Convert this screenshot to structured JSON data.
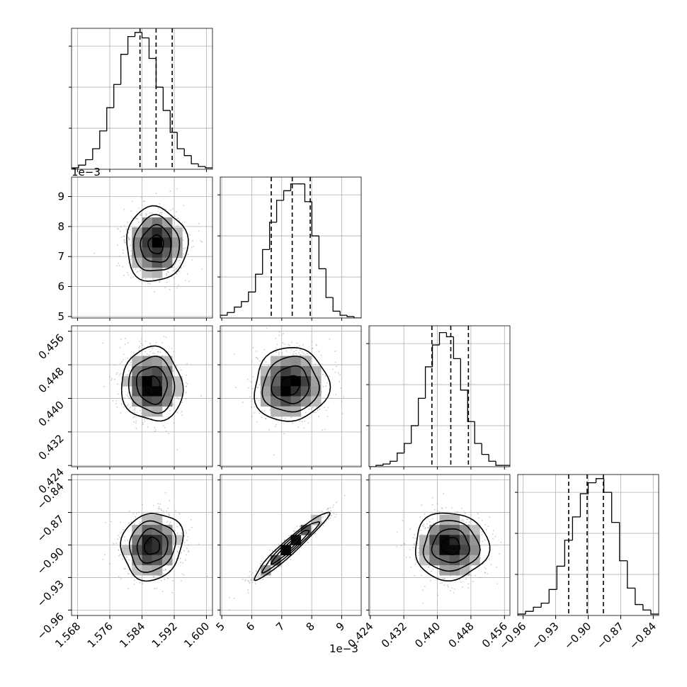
{
  "chart_data": {
    "type": "corner",
    "grid": true,
    "quantiles": [
      0.16,
      0.5,
      0.84
    ],
    "parameters": [
      {
        "range": [
          1.5665,
          1.6015
        ],
        "ticks": [
          1.568,
          1.576,
          1.584,
          1.592,
          1.6
        ],
        "tick_labels": [
          "1.568",
          "1.576",
          "1.584",
          "1.592",
          "1.600"
        ],
        "offset_label": "",
        "quantile_values": [
          1.5835,
          1.5875,
          1.5915
        ]
      },
      {
        "range": [
          4.95,
          9.65
        ],
        "ticks": [
          5,
          6,
          7,
          8,
          9
        ],
        "tick_labels": [
          "5",
          "6",
          "7",
          "8",
          "9"
        ],
        "offset_label": "1e−3",
        "quantile_values": [
          6.65,
          7.35,
          7.95
        ]
      },
      {
        "range": [
          0.4237,
          0.4573
        ],
        "ticks": [
          0.424,
          0.432,
          0.44,
          0.448,
          0.456
        ],
        "tick_labels": [
          "0.424",
          "0.432",
          "0.440",
          "0.448",
          "0.456"
        ],
        "offset_label": "",
        "quantile_values": [
          0.4387,
          0.4432,
          0.4474
        ]
      },
      {
        "range": [
          -0.965,
          -0.835
        ],
        "ticks": [
          -0.96,
          -0.93,
          -0.9,
          -0.87,
          -0.84
        ],
        "tick_labels": [
          "−0.96",
          "−0.93",
          "−0.90",
          "−0.87",
          "−0.84"
        ],
        "offset_label": "",
        "quantile_values": [
          -0.918,
          -0.901,
          -0.886
        ]
      }
    ],
    "histograms": [
      {
        "counts": [
          0.01,
          0.03,
          0.07,
          0.15,
          0.28,
          0.45,
          0.62,
          0.84,
          0.97,
          1.0,
          0.96,
          0.81,
          0.6,
          0.43,
          0.27,
          0.15,
          0.1,
          0.04,
          0.02,
          0.01
        ],
        "ylim": [
          0,
          1.03
        ]
      },
      {
        "counts": [
          0.02,
          0.04,
          0.08,
          0.12,
          0.19,
          0.32,
          0.5,
          0.7,
          0.86,
          0.93,
          0.98,
          0.98,
          0.85,
          0.6,
          0.36,
          0.15,
          0.05,
          0.02,
          0.01,
          0.0
        ],
        "ylim": [
          0,
          1.03
        ]
      },
      {
        "counts": [
          0.0,
          0.01,
          0.02,
          0.04,
          0.1,
          0.17,
          0.3,
          0.5,
          0.73,
          0.89,
          0.98,
          0.95,
          0.79,
          0.56,
          0.33,
          0.17,
          0.09,
          0.04,
          0.01,
          0.01
        ],
        "ylim": [
          0,
          1.03
        ]
      },
      {
        "counts": [
          0.01,
          0.03,
          0.06,
          0.09,
          0.19,
          0.36,
          0.55,
          0.72,
          0.89,
          0.97,
          1.0,
          0.9,
          0.68,
          0.4,
          0.2,
          0.08,
          0.04,
          0.01
        ],
        "ylim": [
          0,
          1.03
        ]
      }
    ],
    "pairs": [
      {
        "x": 0,
        "y": 1,
        "mean": [
          1.5875,
          7.4
        ],
        "sd": [
          0.0038,
          0.62
        ],
        "corr": 0.0
      },
      {
        "x": 0,
        "y": 2,
        "mean": [
          1.5865,
          0.4432
        ],
        "sd": [
          0.0038,
          0.0044
        ],
        "corr": -0.05
      },
      {
        "x": 1,
        "y": 2,
        "mean": [
          7.3,
          0.4432
        ],
        "sd": [
          0.62,
          0.0044
        ],
        "corr": 0.05
      },
      {
        "x": 0,
        "y": 3,
        "mean": [
          1.5865,
          -0.901
        ],
        "sd": [
          0.0038,
          0.0155
        ],
        "corr": 0.1
      },
      {
        "x": 1,
        "y": 3,
        "mean": [
          7.3,
          -0.901
        ],
        "sd": [
          0.62,
          0.0155
        ],
        "corr": 0.96
      },
      {
        "x": 2,
        "y": 3,
        "mean": [
          0.4432,
          -0.901
        ],
        "sd": [
          0.0044,
          0.0155
        ],
        "corr": 0.0
      }
    ],
    "contour_sigmas": [
      0.5,
      1.0,
      1.5,
      2.0
    ]
  }
}
